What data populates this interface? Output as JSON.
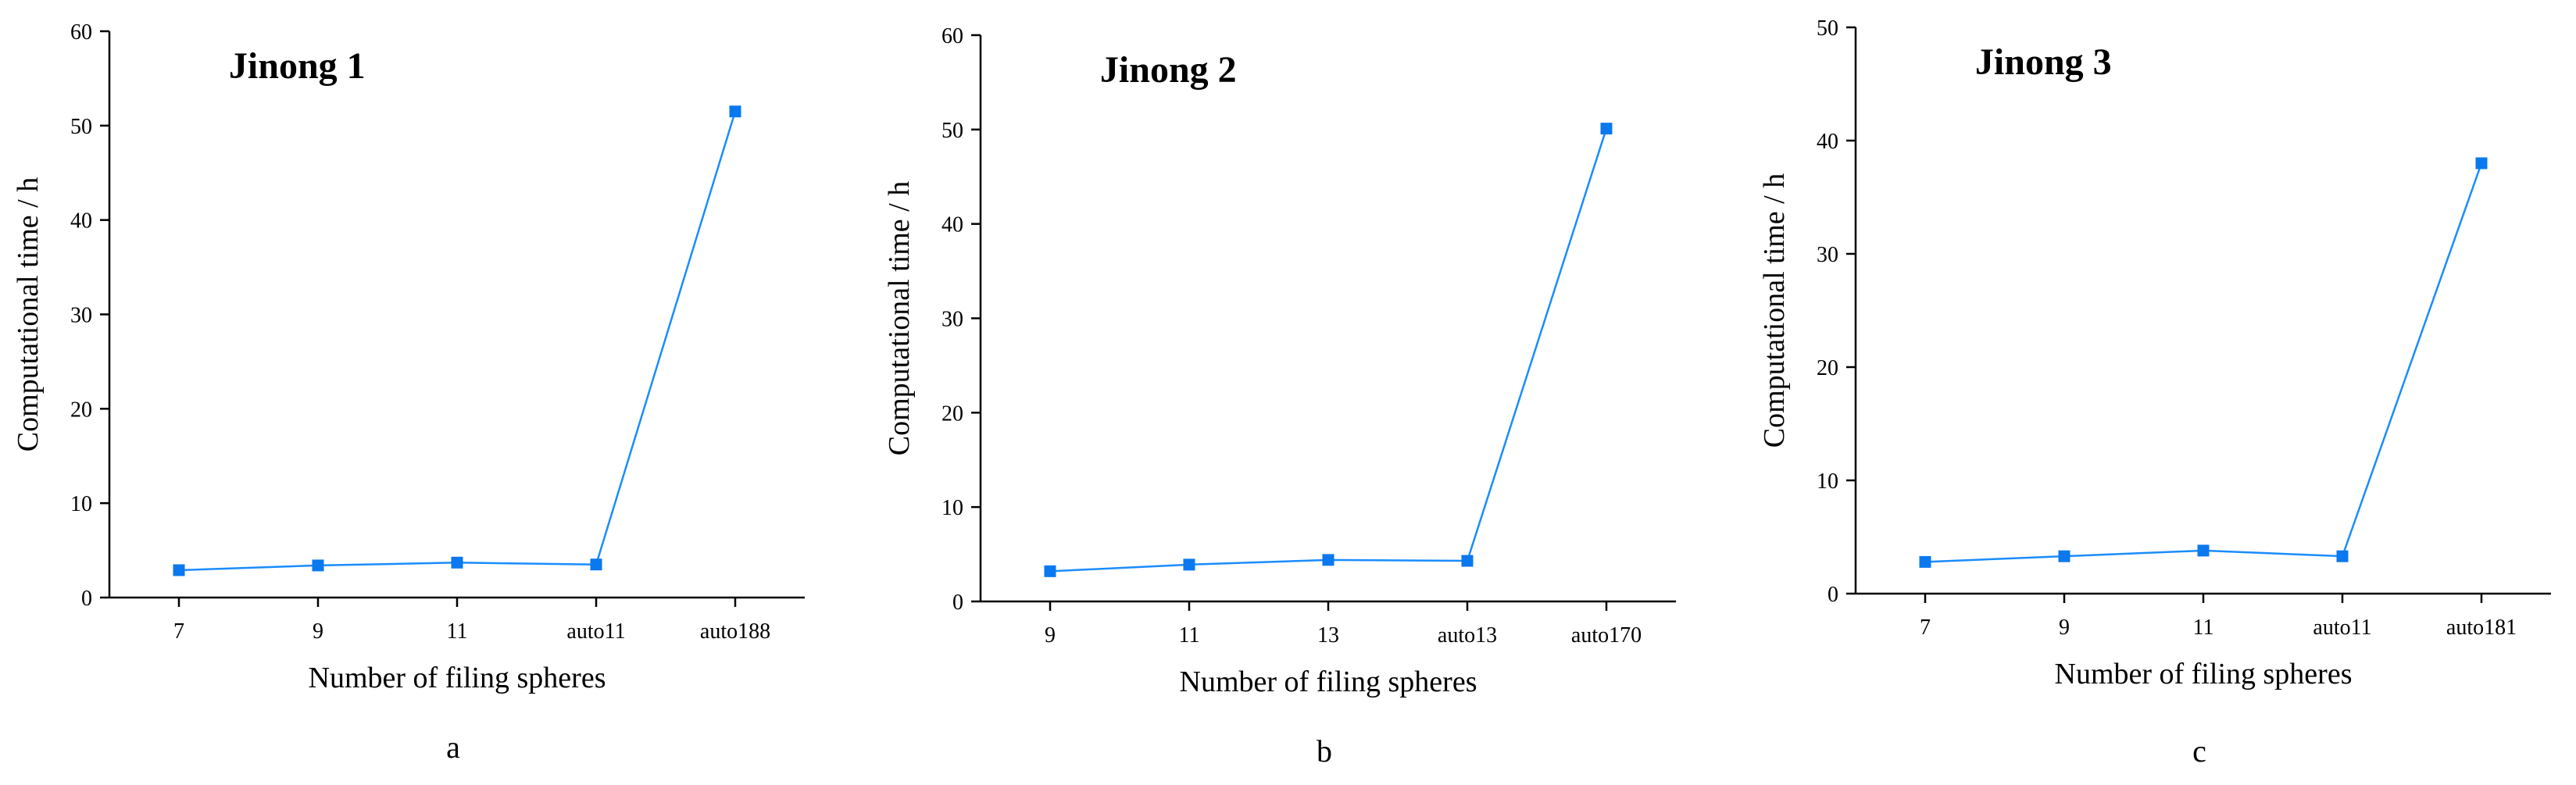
{
  "colors": {
    "series": "#1a8cff",
    "marker": "#0a78ee",
    "axis": "#000000"
  },
  "chart_data": [
    {
      "type": "line",
      "title": "Jinong 1",
      "panel_label": "a",
      "xlabel": "Number of filing spheres",
      "ylabel": "Computational time / h",
      "categories": [
        "7",
        "9",
        "11",
        "auto11",
        "auto188"
      ],
      "series": [
        {
          "values": [
            2.9,
            3.4,
            3.7,
            3.5,
            51.5
          ],
          "marker": "square"
        }
      ],
      "ylim": [
        0,
        60
      ],
      "yticks": [
        0,
        10,
        20,
        30,
        40,
        50,
        60
      ],
      "grid": false,
      "legend": "none"
    },
    {
      "type": "line",
      "title": "Jinong 2",
      "panel_label": "b",
      "xlabel": "Number of filing spheres",
      "ylabel": "Computational time / h",
      "categories": [
        "9",
        "11",
        "13",
        "auto13",
        "auto170"
      ],
      "series": [
        {
          "values": [
            3.2,
            3.9,
            4.4,
            4.3,
            50.1
          ],
          "marker": "square"
        }
      ],
      "ylim": [
        0,
        60
      ],
      "yticks": [
        0,
        10,
        20,
        30,
        40,
        50,
        60
      ],
      "grid": false,
      "legend": "none"
    },
    {
      "type": "line",
      "title": "Jinong 3",
      "panel_label": "c",
      "xlabel": "Number of filing spheres",
      "ylabel": "Computational time / h",
      "categories": [
        "7",
        "9",
        "11",
        "auto11",
        "auto181"
      ],
      "series": [
        {
          "values": [
            2.8,
            3.3,
            3.8,
            3.3,
            38.0
          ],
          "marker": "square"
        }
      ],
      "ylim": [
        0,
        50
      ],
      "yticks": [
        0,
        10,
        20,
        30,
        40,
        50
      ],
      "grid": false,
      "legend": "none"
    }
  ]
}
